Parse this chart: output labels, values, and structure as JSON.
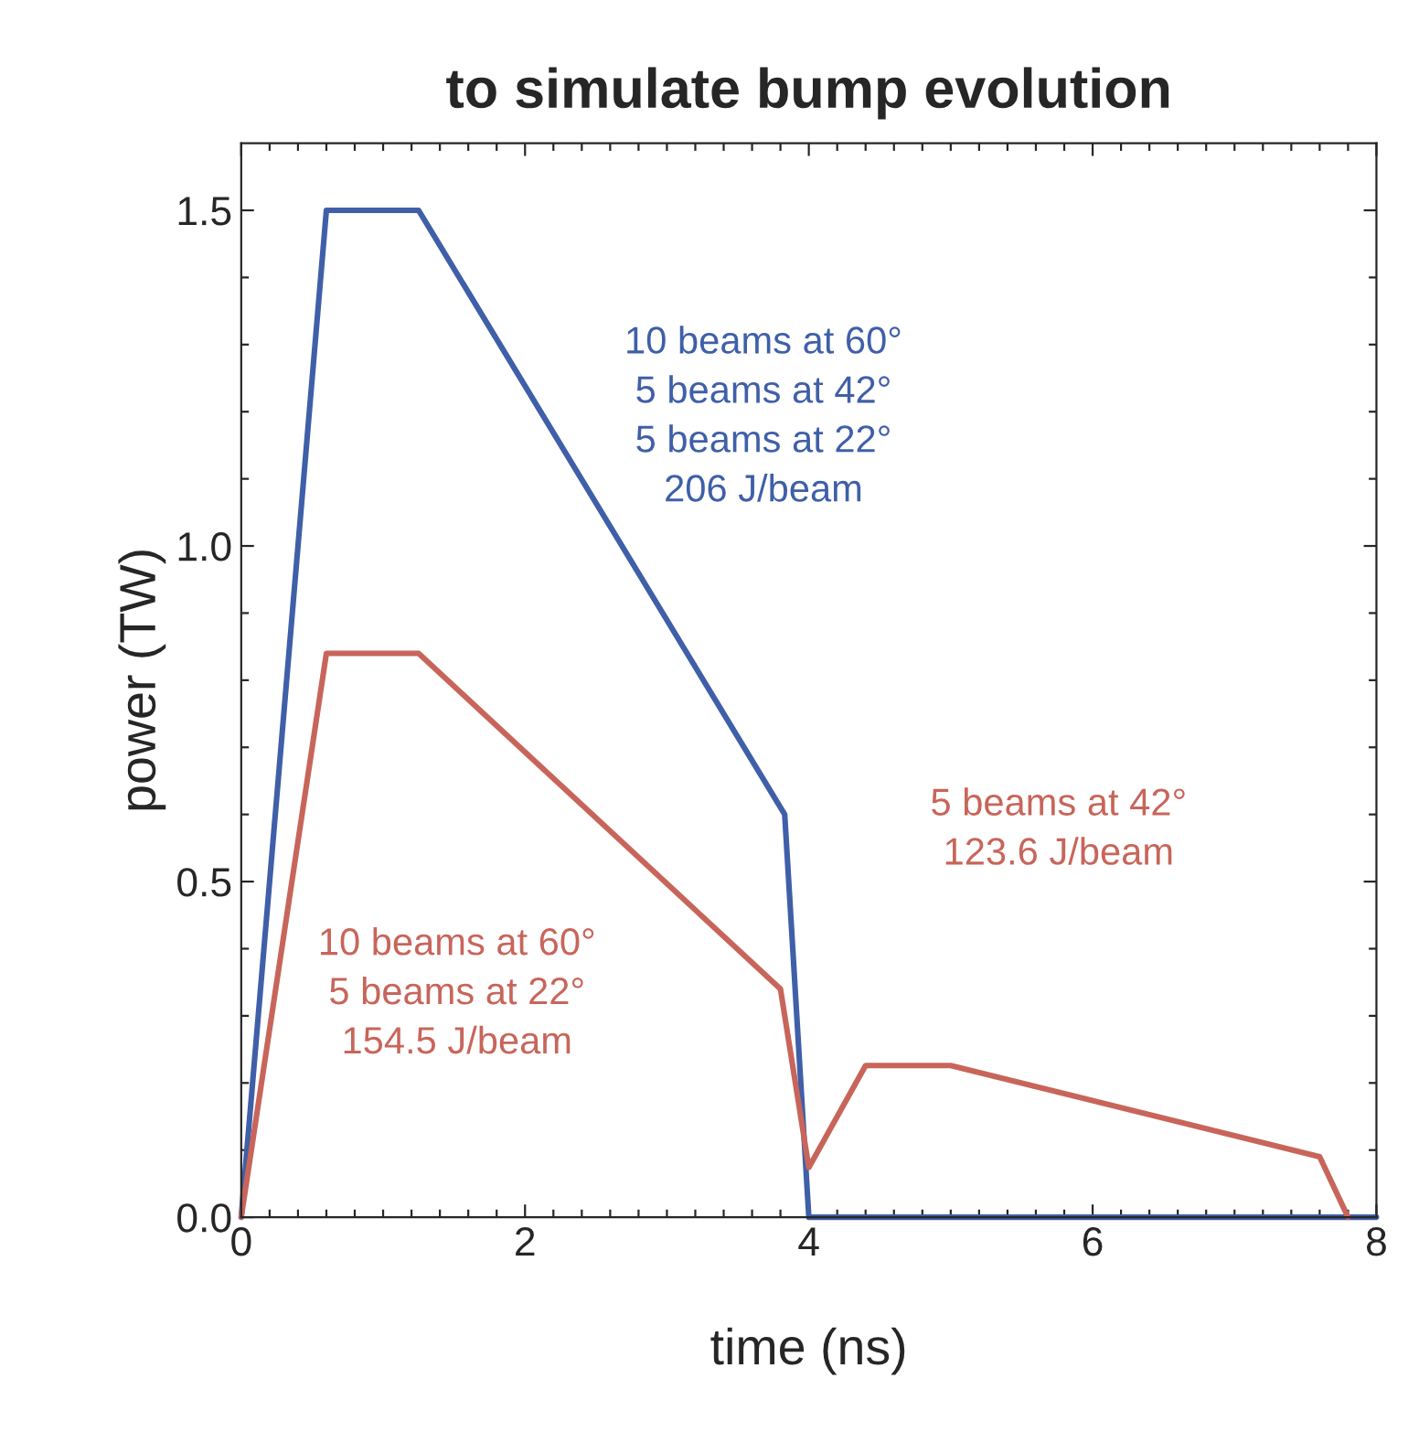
{
  "chart_data": {
    "type": "line",
    "title": "to simulate bump evolution",
    "xlabel": "time (ns)",
    "ylabel": "power (TW)",
    "xlim": [
      0,
      8
    ],
    "ylim": [
      0,
      1.6
    ],
    "xticks": [
      0,
      {
        "value": 0.2,
        "label": null
      },
      {
        "value": 0.4,
        "label": null
      },
      {
        "value": 0.6,
        "label": null
      },
      {
        "value": 0.8,
        "label": null
      },
      {
        "value": 1,
        "label": null
      },
      {
        "value": 1.2,
        "label": null
      },
      {
        "value": 1.4,
        "label": null
      },
      {
        "value": 1.6,
        "label": null
      },
      {
        "value": 1.8,
        "label": null
      },
      2,
      {
        "value": 2.2,
        "label": null
      },
      {
        "value": 2.4,
        "label": null
      },
      {
        "value": 2.6,
        "label": null
      },
      {
        "value": 2.8,
        "label": null
      },
      {
        "value": 3,
        "label": null
      },
      {
        "value": 3.2,
        "label": null
      },
      {
        "value": 3.4,
        "label": null
      },
      {
        "value": 3.6,
        "label": null
      },
      {
        "value": 3.8,
        "label": null
      },
      4,
      {
        "value": 4.2,
        "label": null
      },
      {
        "value": 4.4,
        "label": null
      },
      {
        "value": 4.6,
        "label": null
      },
      {
        "value": 4.8,
        "label": null
      },
      {
        "value": 5,
        "label": null
      },
      {
        "value": 5.2,
        "label": null
      },
      {
        "value": 5.4,
        "label": null
      },
      {
        "value": 5.6,
        "label": null
      },
      {
        "value": 5.8,
        "label": null
      },
      6,
      {
        "value": 6.2,
        "label": null
      },
      {
        "value": 6.4,
        "label": null
      },
      {
        "value": 6.6,
        "label": null
      },
      {
        "value": 6.8,
        "label": null
      },
      {
        "value": 7,
        "label": null
      },
      {
        "value": 7.2,
        "label": null
      },
      {
        "value": 7.4,
        "label": null
      },
      {
        "value": 7.6,
        "label": null
      },
      {
        "value": 7.8,
        "label": null
      },
      8
    ],
    "yticks": [
      {
        "value": 0,
        "label": "0.0"
      },
      {
        "value": 0.1,
        "label": null
      },
      {
        "value": 0.2,
        "label": null
      },
      {
        "value": 0.3,
        "label": null
      },
      {
        "value": 0.4,
        "label": null
      },
      0.5,
      {
        "value": 0.6,
        "label": null
      },
      {
        "value": 0.7,
        "label": null
      },
      {
        "value": 0.8,
        "label": null
      },
      {
        "value": 0.9,
        "label": null
      },
      {
        "value": 1,
        "label": "1.0"
      },
      {
        "value": 1.1,
        "label": null
      },
      {
        "value": 1.2,
        "label": null
      },
      {
        "value": 1.3,
        "label": null
      },
      {
        "value": 1.4,
        "label": null
      },
      1.5
    ],
    "grid": false,
    "legend": false,
    "marker": "none",
    "line_style": "solid",
    "series": [
      {
        "name": "10 beams at 60°\n5 beams at 42°\n5 beams at 22°\n206 J/beam",
        "color": "#3f5fa8",
        "x": [
          0,
          0.6,
          1.25,
          3.83,
          4.0,
          8.0
        ],
        "values": [
          0,
          1.5,
          1.5,
          0.6,
          0,
          0
        ]
      },
      {
        "name": "10 beams at 60°\n5 beams at 22°\n154.5 J/beam",
        "color": "#c8655a",
        "x": [
          0,
          0.6,
          1.25,
          3.8,
          4.0,
          4.4,
          5.0,
          7.6,
          7.8
        ],
        "values": [
          0,
          0.84,
          0.84,
          0.34,
          0.074,
          0.226,
          0.226,
          0.09,
          0
        ]
      }
    ],
    "annotations": [
      "5 beams at 42°\n123.6 J/beam"
    ]
  }
}
